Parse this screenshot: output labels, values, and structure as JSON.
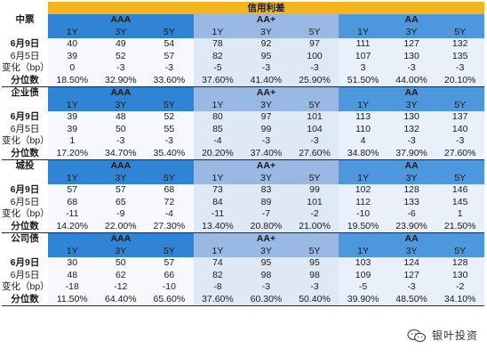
{
  "title": "信用利差",
  "grades": [
    "AAA",
    "AA+",
    "AA"
  ],
  "tenors": [
    "1Y",
    "3Y",
    "5Y"
  ],
  "blocks": [
    {
      "name": "中票",
      "rows": [
        {
          "label": "6月9日",
          "values": [
            40,
            49,
            54,
            78,
            92,
            97,
            111,
            127,
            132
          ]
        },
        {
          "label": "6月5日",
          "values": [
            39,
            52,
            57,
            82,
            95,
            100,
            107,
            130,
            135
          ]
        },
        {
          "label": "变化（bp）",
          "values": [
            0,
            -3,
            -3,
            -5,
            -3,
            -3,
            3,
            -3,
            -3
          ]
        },
        {
          "label": "分位数",
          "values": [
            "18.50%",
            "32.90%",
            "33.60%",
            "37.60%",
            "41.40%",
            "25.90%",
            "51.50%",
            "44.00%",
            "20.10%"
          ]
        }
      ]
    },
    {
      "name": "企业债",
      "rows": [
        {
          "label": "6月9日",
          "values": [
            39,
            48,
            52,
            80,
            97,
            101,
            113,
            130,
            137
          ]
        },
        {
          "label": "6月5日",
          "values": [
            39,
            50,
            55,
            85,
            99,
            104,
            110,
            132,
            140
          ]
        },
        {
          "label": "变化（bp）",
          "values": [
            1,
            -3,
            -3,
            -4,
            -3,
            -3,
            4,
            -3,
            -3
          ]
        },
        {
          "label": "分位数",
          "values": [
            "17.20%",
            "34.70%",
            "35.40%",
            "20.20%",
            "37.40%",
            "27.60%",
            "34.80%",
            "37.90%",
            "27.60%"
          ]
        }
      ]
    },
    {
      "name": "城投",
      "rows": [
        {
          "label": "6月9日",
          "values": [
            57,
            57,
            68,
            73,
            83,
            99,
            102,
            128,
            146
          ]
        },
        {
          "label": "6月5日",
          "values": [
            68,
            65,
            72,
            84,
            89,
            101,
            112,
            133,
            145
          ]
        },
        {
          "label": "变化（bp）",
          "values": [
            -11,
            -9,
            -4,
            -11,
            -7,
            -2,
            -10,
            -6,
            1
          ]
        },
        {
          "label": "分位数",
          "values": [
            "14.20%",
            "22.00%",
            "27.30%",
            "13.40%",
            "20.80%",
            "21.00%",
            "19.50%",
            "23.90%",
            "21.50%"
          ]
        }
      ]
    },
    {
      "name": "公司债",
      "rows": [
        {
          "label": "6月9日",
          "values": [
            30,
            50,
            57,
            74,
            95,
            95,
            103,
            124,
            128
          ]
        },
        {
          "label": "6月5日",
          "values": [
            48,
            62,
            66,
            82,
            98,
            98,
            109,
            127,
            130
          ]
        },
        {
          "label": "变化（bp）",
          "values": [
            -18,
            -12,
            -10,
            -8,
            -3,
            -3,
            -5,
            -3,
            -2
          ]
        },
        {
          "label": "分位数",
          "values": [
            "11.50%",
            "64.40%",
            "65.60%",
            "37.60%",
            "60.30%",
            "50.40%",
            "39.90%",
            "48.50%",
            "34.10%"
          ]
        }
      ]
    }
  ],
  "watermark": "银叶投资",
  "colors": {
    "title_bar": "#f3b51b",
    "aaa_header": "#2f84d6",
    "aaplus_header": "#9ab8e4",
    "aa_header": "#4d97df"
  }
}
